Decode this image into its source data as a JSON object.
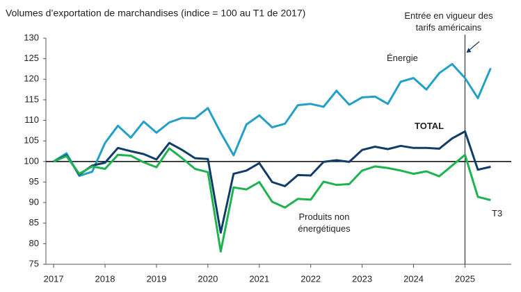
{
  "chart_data": {
    "type": "line",
    "title": "Volumes d’exportation de marchandises (indice = 100 au T1 de 2017)",
    "x": [
      2017,
      2017.25,
      2017.5,
      2017.75,
      2018,
      2018.25,
      2018.5,
      2018.75,
      2019,
      2019.25,
      2019.5,
      2019.75,
      2020,
      2020.25,
      2020.5,
      2020.75,
      2021,
      2021.25,
      2021.5,
      2021.75,
      2022,
      2022.25,
      2022.5,
      2022.75,
      2023,
      2023.25,
      2023.5,
      2023.75,
      2024,
      2024.25,
      2024.5,
      2024.75,
      2025,
      2025.25,
      2025.5
    ],
    "series": [
      {
        "name": "Énergie",
        "color": "#22a0c8",
        "values": [
          100,
          102,
          96.5,
          97.5,
          104.5,
          108.7,
          105.8,
          109.7,
          107,
          109.5,
          110.6,
          110.5,
          113,
          107,
          101.5,
          109,
          111.2,
          108.3,
          109.2,
          113.7,
          114,
          113.3,
          117.2,
          113.8,
          115.6,
          115.8,
          114,
          119.4,
          120.3,
          117.5,
          121.5,
          123.7,
          120.3,
          115.4,
          122.7
        ]
      },
      {
        "name": "TOTAL",
        "color": "#0f3c68",
        "values": [
          100,
          101.5,
          96.8,
          99,
          99.7,
          103.3,
          102.5,
          101.8,
          100.5,
          104.5,
          102.8,
          100.8,
          100.6,
          82.7,
          97,
          97.8,
          99.6,
          95,
          94,
          96.7,
          96.6,
          99.9,
          100.3,
          99.9,
          102.8,
          103.6,
          103,
          103.8,
          103.3,
          103.3,
          103.1,
          105.6,
          107.3,
          98,
          98.7
        ]
      },
      {
        "name": "Produits non énergétiques",
        "color": "#1fb350",
        "values": [
          100,
          101.3,
          97,
          98.8,
          98.2,
          101.6,
          101.4,
          99.8,
          98.6,
          103.2,
          100.8,
          98.2,
          97.4,
          78.1,
          93.7,
          93.2,
          95,
          90.2,
          88.8,
          90.9,
          90.7,
          95.1,
          94.3,
          94.5,
          97.8,
          98.8,
          98.4,
          97.8,
          97,
          97.6,
          96.4,
          99,
          101.6,
          91.4,
          90.6
        ]
      }
    ],
    "xlim": [
      2016.85,
      2025.9
    ],
    "xticks": [
      2017,
      2018,
      2019,
      2020,
      2021,
      2022,
      2023,
      2024,
      2025
    ],
    "ylim": [
      75,
      130
    ],
    "yticks": [
      75,
      80,
      85,
      90,
      95,
      100,
      105,
      110,
      115,
      120,
      125,
      130
    ],
    "reference_line": 100,
    "event_x": 2025,
    "event_label": "Entrée en vigueur des tarifs américains",
    "end_label": "T3"
  }
}
